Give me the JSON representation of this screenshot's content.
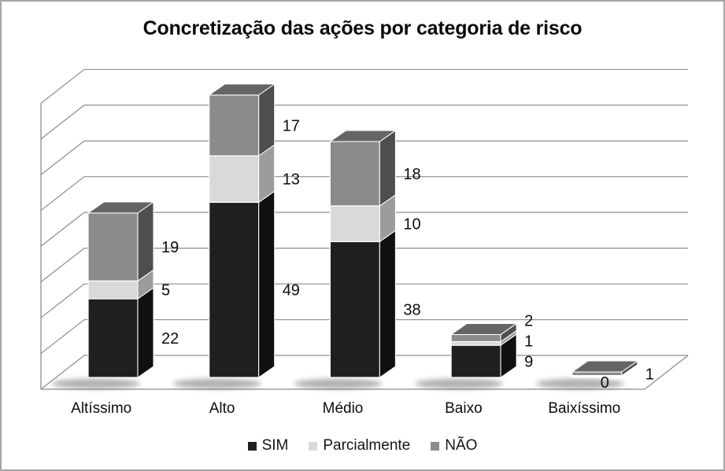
{
  "chart_data": {
    "type": "bar",
    "subtype": "stacked-3d",
    "title": "Concretização das ações por categoria de risco",
    "categories": [
      "Altíssimo",
      "Alto",
      "Médio",
      "Baixo",
      "Baixíssimo"
    ],
    "series": [
      {
        "name": "SIM",
        "values": [
          22,
          49,
          38,
          9,
          0
        ],
        "labels": [
          "22",
          "49",
          "38",
          "9",
          "0"
        ],
        "colors": {
          "front": "#1f1f1f",
          "side": "#101010",
          "top": "#323232"
        }
      },
      {
        "name": "Parcialmente",
        "values": [
          5,
          13,
          10,
          1,
          0
        ],
        "labels": [
          "5",
          "13",
          "10",
          "1",
          null
        ],
        "colors": {
          "front": "#d9d9d9",
          "side": "#9c9c9c",
          "top": "#bfbfbf"
        }
      },
      {
        "name": "NÃO",
        "values": [
          19,
          17,
          18,
          2,
          1
        ],
        "labels": [
          "19",
          "17",
          "18",
          "2",
          "1"
        ],
        "colors": {
          "front": "#8b8b8b",
          "side": "#4e4e4e",
          "top": "#656565"
        }
      }
    ],
    "totals": [
      46,
      79,
      66,
      12,
      1
    ],
    "value_axis": {
      "min": 0,
      "max": 80,
      "major_unit": 10,
      "labels_visible": false
    },
    "grid": true,
    "legend_position": "bottom",
    "colors": {
      "gridline": "#8d8d8d",
      "axis": "#8d8d8d",
      "label_text": "#0d0d0d",
      "background": "#ffffff",
      "frame_border": "#a6a6a6"
    }
  }
}
